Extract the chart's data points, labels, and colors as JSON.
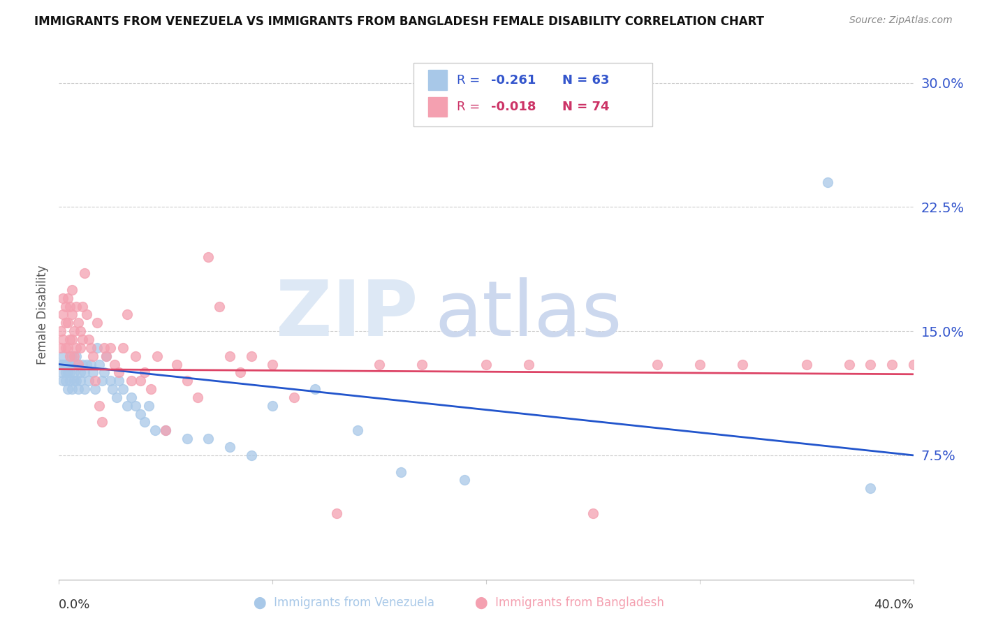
{
  "title": "IMMIGRANTS FROM VENEZUELA VS IMMIGRANTS FROM BANGLADESH FEMALE DISABILITY CORRELATION CHART",
  "source": "Source: ZipAtlas.com",
  "ylabel": "Female Disability",
  "yticks": [
    "7.5%",
    "15.0%",
    "22.5%",
    "30.0%"
  ],
  "ytick_vals": [
    0.075,
    0.15,
    0.225,
    0.3
  ],
  "xlim": [
    0.0,
    0.4
  ],
  "ylim": [
    0.0,
    0.32
  ],
  "color_venezuela": "#a8c8e8",
  "color_bangladesh": "#f4a0b0",
  "color_blue_line": "#2255cc",
  "color_pink_line": "#dd4466",
  "color_blue_text": "#3355cc",
  "color_pink_text": "#cc3366",
  "background_color": "#ffffff",
  "venezuela_x": [
    0.001,
    0.001,
    0.002,
    0.002,
    0.002,
    0.003,
    0.003,
    0.003,
    0.004,
    0.004,
    0.004,
    0.005,
    0.005,
    0.005,
    0.006,
    0.006,
    0.007,
    0.007,
    0.007,
    0.008,
    0.008,
    0.009,
    0.009,
    0.01,
    0.01,
    0.011,
    0.012,
    0.012,
    0.013,
    0.014,
    0.015,
    0.016,
    0.017,
    0.018,
    0.019,
    0.02,
    0.021,
    0.022,
    0.024,
    0.025,
    0.027,
    0.028,
    0.03,
    0.032,
    0.034,
    0.036,
    0.038,
    0.04,
    0.042,
    0.045,
    0.05,
    0.06,
    0.07,
    0.08,
    0.09,
    0.1,
    0.12,
    0.14,
    0.16,
    0.19,
    0.22,
    0.36,
    0.38
  ],
  "venezuela_y": [
    0.13,
    0.125,
    0.135,
    0.12,
    0.13,
    0.125,
    0.13,
    0.12,
    0.13,
    0.125,
    0.115,
    0.13,
    0.125,
    0.12,
    0.135,
    0.115,
    0.13,
    0.125,
    0.12,
    0.135,
    0.12,
    0.13,
    0.115,
    0.125,
    0.12,
    0.13,
    0.125,
    0.115,
    0.13,
    0.12,
    0.13,
    0.125,
    0.115,
    0.14,
    0.13,
    0.12,
    0.125,
    0.135,
    0.12,
    0.115,
    0.11,
    0.12,
    0.115,
    0.105,
    0.11,
    0.105,
    0.1,
    0.095,
    0.105,
    0.09,
    0.09,
    0.085,
    0.085,
    0.08,
    0.075,
    0.105,
    0.115,
    0.09,
    0.065,
    0.06,
    0.29,
    0.24,
    0.055
  ],
  "bangladesh_x": [
    0.001,
    0.001,
    0.002,
    0.002,
    0.002,
    0.003,
    0.003,
    0.003,
    0.004,
    0.004,
    0.004,
    0.005,
    0.005,
    0.005,
    0.006,
    0.006,
    0.006,
    0.007,
    0.007,
    0.008,
    0.008,
    0.009,
    0.009,
    0.01,
    0.01,
    0.011,
    0.011,
    0.012,
    0.013,
    0.014,
    0.015,
    0.016,
    0.017,
    0.018,
    0.019,
    0.02,
    0.021,
    0.022,
    0.024,
    0.026,
    0.028,
    0.03,
    0.032,
    0.034,
    0.036,
    0.038,
    0.04,
    0.043,
    0.046,
    0.05,
    0.055,
    0.06,
    0.065,
    0.07,
    0.075,
    0.08,
    0.085,
    0.09,
    0.1,
    0.11,
    0.13,
    0.15,
    0.17,
    0.2,
    0.22,
    0.25,
    0.28,
    0.3,
    0.32,
    0.35,
    0.37,
    0.38,
    0.39,
    0.4
  ],
  "bangladesh_y": [
    0.15,
    0.14,
    0.16,
    0.145,
    0.17,
    0.155,
    0.14,
    0.165,
    0.155,
    0.14,
    0.17,
    0.145,
    0.165,
    0.135,
    0.16,
    0.145,
    0.175,
    0.15,
    0.135,
    0.165,
    0.14,
    0.155,
    0.13,
    0.15,
    0.14,
    0.165,
    0.145,
    0.185,
    0.16,
    0.145,
    0.14,
    0.135,
    0.12,
    0.155,
    0.105,
    0.095,
    0.14,
    0.135,
    0.14,
    0.13,
    0.125,
    0.14,
    0.16,
    0.12,
    0.135,
    0.12,
    0.125,
    0.115,
    0.135,
    0.09,
    0.13,
    0.12,
    0.11,
    0.195,
    0.165,
    0.135,
    0.125,
    0.135,
    0.13,
    0.11,
    0.04,
    0.13,
    0.13,
    0.13,
    0.13,
    0.04,
    0.13,
    0.13,
    0.13,
    0.13,
    0.13,
    0.13,
    0.13,
    0.13
  ]
}
